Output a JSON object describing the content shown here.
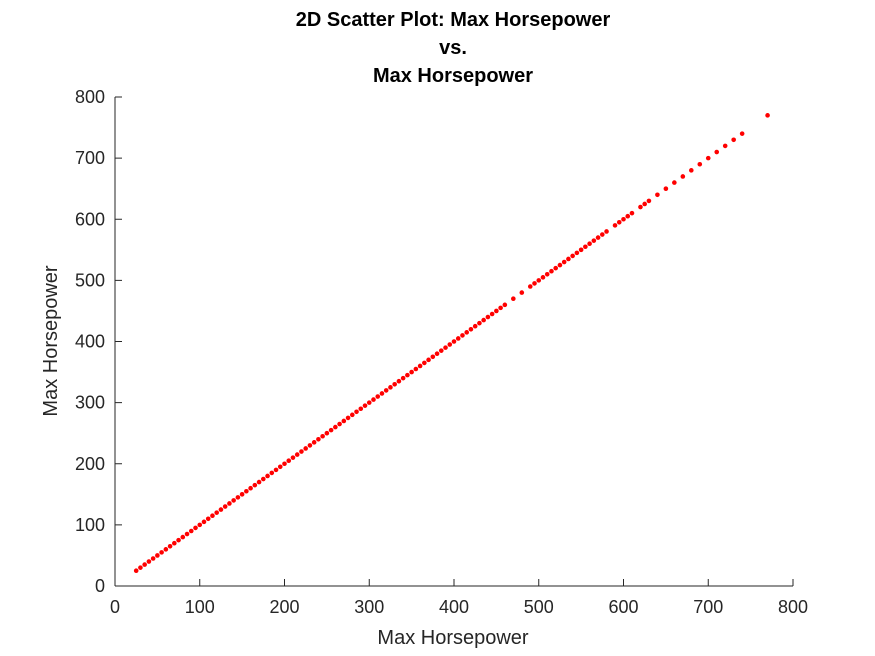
{
  "chart_data": {
    "type": "scatter",
    "title": [
      "2D Scatter Plot: Max Horsepower",
      "vs.",
      "Max Horsepower"
    ],
    "xlabel": "Max Horsepower",
    "ylabel": "Max Horsepower",
    "xlim": [
      0,
      800
    ],
    "ylim": [
      0,
      800
    ],
    "xticks": [
      0,
      100,
      200,
      300,
      400,
      500,
      600,
      700,
      800
    ],
    "yticks": [
      0,
      100,
      200,
      300,
      400,
      500,
      600,
      700,
      800
    ],
    "grid": false,
    "marker_color": "#ff0000",
    "series": [
      {
        "x": [
          25,
          30,
          35,
          40,
          45,
          50,
          55,
          60,
          65,
          70,
          75,
          80,
          85,
          90,
          95,
          100,
          105,
          110,
          115,
          120,
          125,
          130,
          135,
          140,
          145,
          150,
          155,
          160,
          165,
          170,
          175,
          180,
          185,
          190,
          195,
          200,
          205,
          210,
          215,
          220,
          225,
          230,
          235,
          240,
          245,
          250,
          255,
          260,
          265,
          270,
          275,
          280,
          285,
          290,
          295,
          300,
          305,
          310,
          315,
          320,
          325,
          330,
          335,
          340,
          345,
          350,
          355,
          360,
          365,
          370,
          375,
          380,
          385,
          390,
          395,
          400,
          405,
          410,
          415,
          420,
          425,
          430,
          435,
          440,
          445,
          450,
          455,
          460,
          470,
          480,
          490,
          495,
          500,
          505,
          510,
          515,
          520,
          525,
          530,
          535,
          540,
          545,
          550,
          555,
          560,
          565,
          570,
          575,
          580,
          590,
          595,
          600,
          605,
          610,
          620,
          625,
          630,
          640,
          650,
          660,
          670,
          680,
          690,
          700,
          710,
          720,
          730,
          740,
          770
        ],
        "y": [
          25,
          30,
          35,
          40,
          45,
          50,
          55,
          60,
          65,
          70,
          75,
          80,
          85,
          90,
          95,
          100,
          105,
          110,
          115,
          120,
          125,
          130,
          135,
          140,
          145,
          150,
          155,
          160,
          165,
          170,
          175,
          180,
          185,
          190,
          195,
          200,
          205,
          210,
          215,
          220,
          225,
          230,
          235,
          240,
          245,
          250,
          255,
          260,
          265,
          270,
          275,
          280,
          285,
          290,
          295,
          300,
          305,
          310,
          315,
          320,
          325,
          330,
          335,
          340,
          345,
          350,
          355,
          360,
          365,
          370,
          375,
          380,
          385,
          390,
          395,
          400,
          405,
          410,
          415,
          420,
          425,
          430,
          435,
          440,
          445,
          450,
          455,
          460,
          470,
          480,
          490,
          495,
          500,
          505,
          510,
          515,
          520,
          525,
          530,
          535,
          540,
          545,
          550,
          555,
          560,
          565,
          570,
          575,
          580,
          590,
          595,
          600,
          605,
          610,
          620,
          625,
          630,
          640,
          650,
          660,
          670,
          680,
          690,
          700,
          710,
          720,
          730,
          740,
          770
        ]
      }
    ]
  }
}
